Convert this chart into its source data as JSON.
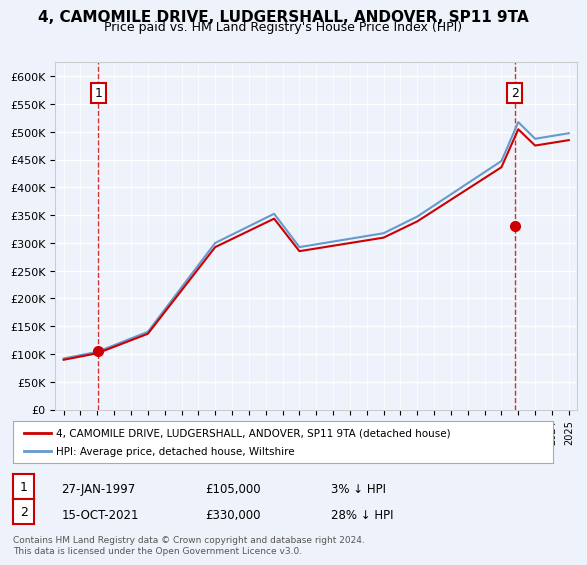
{
  "title": "4, CAMOMILE DRIVE, LUDGERSHALL, ANDOVER, SP11 9TA",
  "subtitle": "Price paid vs. HM Land Registry's House Price Index (HPI)",
  "title_fontsize": 11,
  "subtitle_fontsize": 9,
  "background_color": "#eef3fb",
  "plot_bg_color": "#eef3fb",
  "legend_label_red": "4, CAMOMILE DRIVE, LUDGERSHALL, ANDOVER, SP11 9TA (detached house)",
  "legend_label_blue": "HPI: Average price, detached house, Wiltshire",
  "footer": "Contains HM Land Registry data © Crown copyright and database right 2024.\nThis data is licensed under the Open Government Licence v3.0.",
  "transaction1": {
    "label": "1",
    "date": "27-JAN-1997",
    "price": 105000,
    "hpi_diff": "3% ↓ HPI"
  },
  "transaction2": {
    "label": "2",
    "date": "15-OCT-2021",
    "price": 330000,
    "hpi_diff": "28% ↓ HPI"
  },
  "ylim": [
    0,
    625000
  ],
  "yticks": [
    0,
    50000,
    100000,
    150000,
    200000,
    250000,
    300000,
    350000,
    400000,
    450000,
    500000,
    550000,
    600000
  ],
  "red_color": "#cc0000",
  "blue_color": "#6699cc",
  "dashed_red": "#cc0000",
  "marker_color": "#cc0000"
}
